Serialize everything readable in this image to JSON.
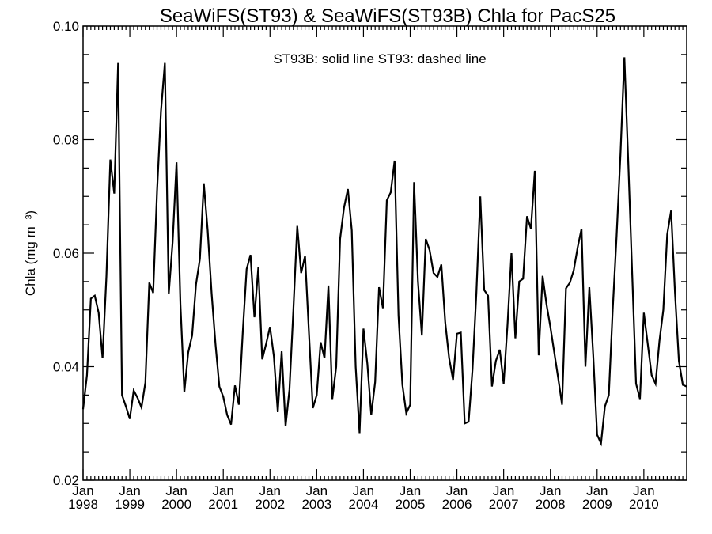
{
  "chart_data": {
    "type": "line",
    "title": "SeaWiFS(ST93) & SeaWiFS(ST93B)  Chla for PacS25",
    "annotation": "ST93B: solid line   ST93: dashed line",
    "ylabel": "Chla (mg m⁻³)",
    "xlabel": "",
    "xlim": [
      "1998-01",
      "2010-12"
    ],
    "ylim": [
      0.02,
      0.1
    ],
    "yticks": [
      0.02,
      0.04,
      0.06,
      0.08,
      0.1
    ],
    "ytick_labels": [
      "0.02",
      "0.04",
      "0.06",
      "0.08",
      "0.10"
    ],
    "xtick_labels": [
      {
        "month": "Jan",
        "year": "1998"
      },
      {
        "month": "Jan",
        "year": "1999"
      },
      {
        "month": "Jan",
        "year": "2000"
      },
      {
        "month": "Jan",
        "year": "2001"
      },
      {
        "month": "Jan",
        "year": "2002"
      },
      {
        "month": "Jan",
        "year": "2003"
      },
      {
        "month": "Jan",
        "year": "2004"
      },
      {
        "month": "Jan",
        "year": "2005"
      },
      {
        "month": "Jan",
        "year": "2006"
      },
      {
        "month": "Jan",
        "year": "2007"
      },
      {
        "month": "Jan",
        "year": "2008"
      },
      {
        "month": "Jan",
        "year": "2009"
      },
      {
        "month": "Jan",
        "year": "2010"
      }
    ],
    "grid": false,
    "series": [
      {
        "line_style": "solid",
        "color": "#000000",
        "x": [
          "1998-01",
          "1998-02",
          "1998-03",
          "1998-04",
          "1998-05",
          "1998-06",
          "1998-07",
          "1998-08",
          "1998-09",
          "1998-10",
          "1998-11",
          "1998-12",
          "1999-01",
          "1999-02",
          "1999-03",
          "1999-04",
          "1999-05",
          "1999-06",
          "1999-07",
          "1999-08",
          "1999-09",
          "1999-10",
          "1999-11",
          "1999-12",
          "2000-01",
          "2000-02",
          "2000-03",
          "2000-04",
          "2000-05",
          "2000-06",
          "2000-07",
          "2000-08",
          "2000-09",
          "2000-10",
          "2000-11",
          "2000-12",
          "2001-01",
          "2001-02",
          "2001-03",
          "2001-04",
          "2001-05",
          "2001-06",
          "2001-07",
          "2001-08",
          "2001-09",
          "2001-10",
          "2001-11",
          "2001-12",
          "2002-01",
          "2002-02",
          "2002-03",
          "2002-04",
          "2002-05",
          "2002-06",
          "2002-07",
          "2002-08",
          "2002-09",
          "2002-10",
          "2002-11",
          "2002-12",
          "2003-01",
          "2003-02",
          "2003-03",
          "2003-04",
          "2003-05",
          "2003-06",
          "2003-07",
          "2003-08",
          "2003-09",
          "2003-10",
          "2003-11",
          "2003-12",
          "2004-01",
          "2004-02",
          "2004-03",
          "2004-04",
          "2004-05",
          "2004-06",
          "2004-07",
          "2004-08",
          "2004-09",
          "2004-10",
          "2004-11",
          "2004-12",
          "2005-01",
          "2005-02",
          "2005-03",
          "2005-04",
          "2005-05",
          "2005-06",
          "2005-07",
          "2005-08",
          "2005-09",
          "2005-10",
          "2005-11",
          "2005-12",
          "2006-01",
          "2006-02",
          "2006-03",
          "2006-04",
          "2006-05",
          "2006-06",
          "2006-07",
          "2006-08",
          "2006-09",
          "2006-10",
          "2006-11",
          "2006-12",
          "2007-01",
          "2007-02",
          "2007-03",
          "2007-04",
          "2007-05",
          "2007-06",
          "2007-07",
          "2007-08",
          "2007-09",
          "2007-10",
          "2007-11",
          "2007-12",
          "2008-01",
          "2008-02",
          "2008-03",
          "2008-04",
          "2008-05",
          "2008-06",
          "2008-07",
          "2008-08",
          "2008-09",
          "2008-10",
          "2008-11",
          "2008-12",
          "2009-01",
          "2009-02",
          "2009-03",
          "2009-04",
          "2009-05",
          "2009-06",
          "2009-07",
          "2009-08",
          "2009-09",
          "2009-10",
          "2009-11",
          "2009-12",
          "2010-01",
          "2010-02",
          "2010-03",
          "2010-04",
          "2010-05",
          "2010-06",
          "2010-07",
          "2010-08",
          "2010-09",
          "2010-10",
          "2010-11",
          "2010-12"
        ],
        "values": [
          0.0325,
          0.0385,
          0.052,
          0.0525,
          0.0495,
          0.0415,
          0.056,
          0.0765,
          0.0705,
          0.0935,
          0.035,
          0.033,
          0.0308,
          0.0358,
          0.0345,
          0.0328,
          0.0372,
          0.0548,
          0.053,
          0.071,
          0.085,
          0.0935,
          0.0528,
          0.062,
          0.076,
          0.051,
          0.0355,
          0.0425,
          0.0455,
          0.0545,
          0.059,
          0.0723,
          0.064,
          0.053,
          0.044,
          0.0365,
          0.0347,
          0.0315,
          0.0298,
          0.0367,
          0.0333,
          0.046,
          0.0572,
          0.0597,
          0.0487,
          0.0575,
          0.0413,
          0.044,
          0.047,
          0.0418,
          0.032,
          0.0427,
          0.0295,
          0.036,
          0.05,
          0.0648,
          0.0565,
          0.0595,
          0.046,
          0.0327,
          0.035,
          0.0443,
          0.0415,
          0.0543,
          0.0343,
          0.04,
          0.0625,
          0.068,
          0.0713,
          0.064,
          0.04,
          0.0283,
          0.0467,
          0.0405,
          0.0315,
          0.0373,
          0.054,
          0.0503,
          0.0693,
          0.0707,
          0.0763,
          0.049,
          0.0368,
          0.0318,
          0.0333,
          0.0725,
          0.055,
          0.0455,
          0.0625,
          0.0605,
          0.0565,
          0.0558,
          0.058,
          0.0478,
          0.0415,
          0.0377,
          0.0458,
          0.046,
          0.03,
          0.0303,
          0.0395,
          0.053,
          0.07,
          0.0535,
          0.0525,
          0.0365,
          0.041,
          0.043,
          0.037,
          0.0475,
          0.06,
          0.045,
          0.055,
          0.0555,
          0.0665,
          0.0643,
          0.0745,
          0.042,
          0.056,
          0.051,
          0.047,
          0.0425,
          0.038,
          0.0333,
          0.0538,
          0.0548,
          0.057,
          0.061,
          0.0643,
          0.04,
          0.054,
          0.042,
          0.028,
          0.0265,
          0.033,
          0.035,
          0.05,
          0.063,
          0.0775,
          0.0945,
          0.076,
          0.0565,
          0.037,
          0.0343,
          0.0495,
          0.044,
          0.0385,
          0.037,
          0.0445,
          0.05,
          0.0633,
          0.0675,
          0.053,
          0.041,
          0.0368,
          0.0365
        ]
      }
    ]
  }
}
